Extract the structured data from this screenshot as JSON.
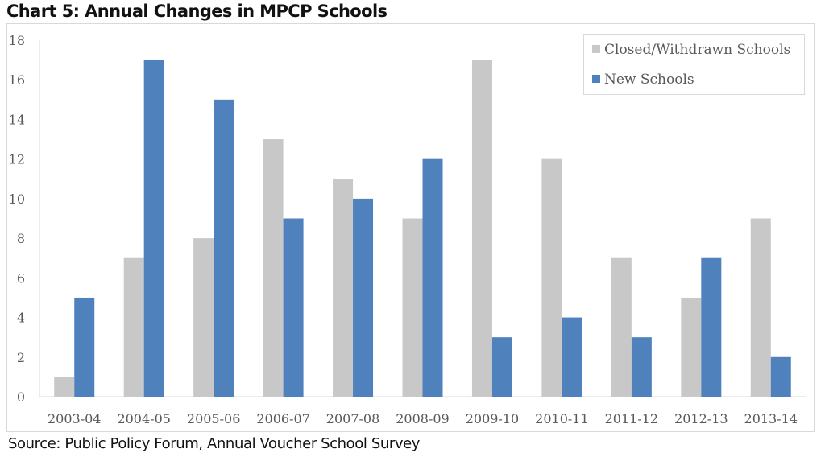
{
  "chart_data": {
    "type": "bar",
    "title": "Chart 5: Annual Changes in MPCP Schools",
    "xlabel": "",
    "ylabel": "",
    "ylim": [
      0,
      18
    ],
    "yticks": [
      "0",
      "2",
      "4",
      "6",
      "8",
      "10",
      "12",
      "14",
      "16",
      "18"
    ],
    "grid": false,
    "legend_position": "top-right",
    "categories": [
      "2003-04",
      "2004-05",
      "2005-06",
      "2006-07",
      "2007-08",
      "2008-09",
      "2009-10",
      "2010-11",
      "2011-12",
      "2012-13",
      "2013-14"
    ],
    "series": [
      {
        "name": "Closed/Withdrawn Schools",
        "color": "#c8c8c8",
        "values": [
          1,
          7,
          8,
          13,
          11,
          9,
          17,
          12,
          7,
          5,
          9
        ]
      },
      {
        "name": "New Schools",
        "color": "#4f81bd",
        "values": [
          5,
          17,
          15,
          9,
          10,
          12,
          3,
          4,
          3,
          7,
          2
        ]
      }
    ]
  },
  "source": "Source:  Public Policy Forum, Annual Voucher School Survey"
}
